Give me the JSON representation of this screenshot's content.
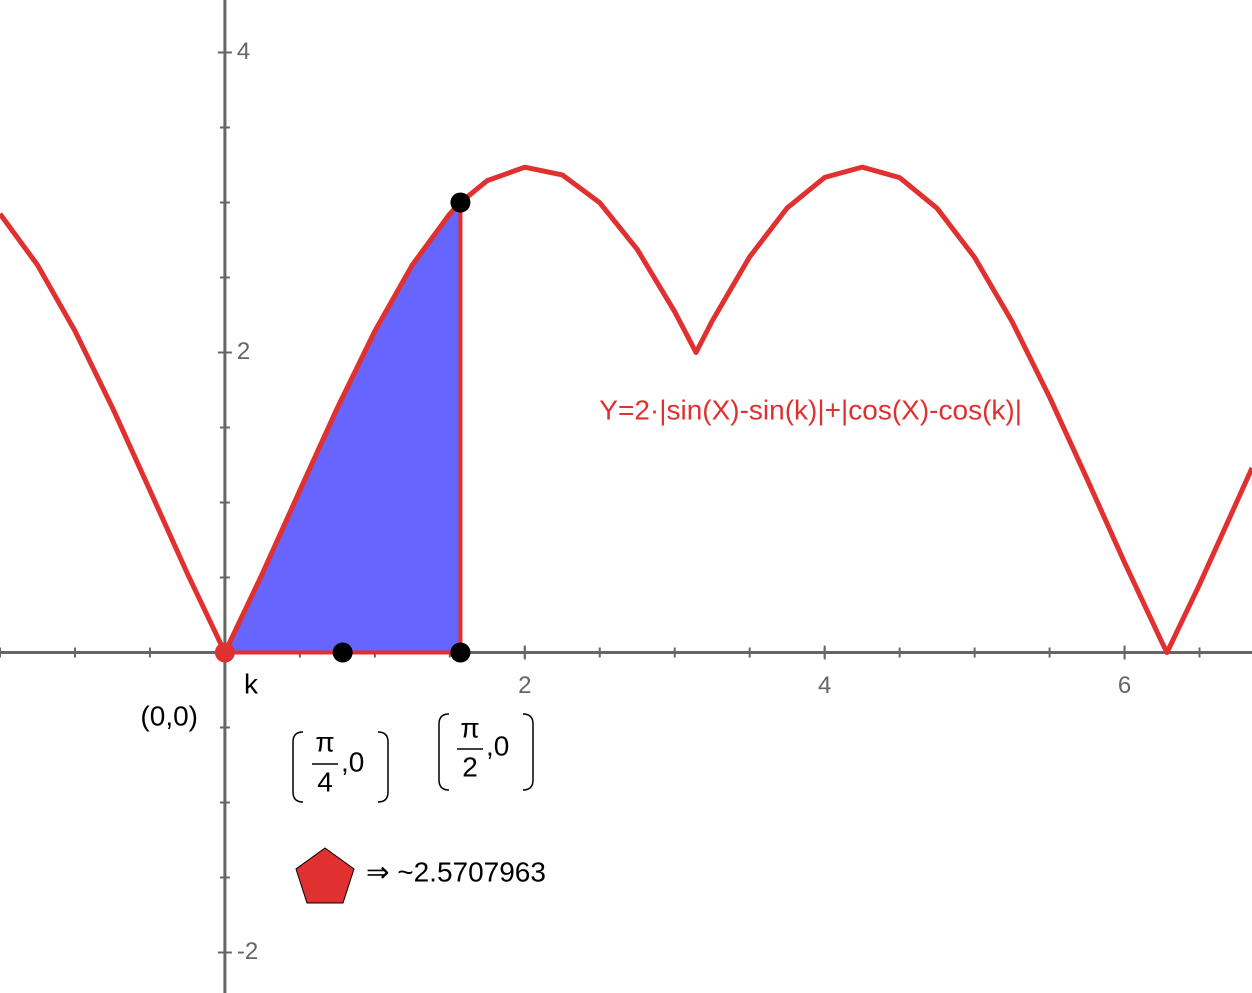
{
  "chart_data": {
    "type": "line",
    "x": [
      -1.5,
      -1.25,
      -1.0,
      -0.75,
      -0.5,
      -0.25,
      0,
      0.25,
      0.5,
      0.75,
      1.0,
      1.25,
      1.5,
      1.5708,
      1.75,
      2.0,
      2.25,
      2.5,
      2.75,
      3.0,
      3.1416,
      3.25,
      3.5,
      3.75,
      4.0,
      4.25,
      4.5,
      4.75,
      5.0,
      5.25,
      5.5,
      5.75,
      6.0,
      6.25,
      6.2832,
      6.5,
      6.75,
      6.85
    ],
    "series": [
      {
        "name": "Y=2·|sin(X)-sin(k)|+|cos(X)-cos(k)|",
        "color": "#e03030",
        "values": [
          2.924,
          2.583,
          2.143,
          1.631,
          1.081,
          0.526,
          0,
          0.526,
          1.081,
          1.631,
          2.143,
          2.583,
          2.924,
          3,
          3.146,
          3.235,
          3.184,
          2.998,
          2.688,
          2.272,
          2,
          2.21,
          2.638,
          2.964,
          3.167,
          3.236,
          3.166,
          2.961,
          2.634,
          2.206,
          1.702,
          1.156,
          0.599,
          0.067,
          0,
          0.453,
          1.007,
          1.23
        ]
      }
    ],
    "shaded": {
      "from": 0,
      "to": 1.5708,
      "color": "#6666ff"
    },
    "points": [
      {
        "x": 0,
        "y": 0,
        "color": "#e03030"
      },
      {
        "x": 0.7854,
        "y": 0,
        "color": "#000000"
      },
      {
        "x": 1.5708,
        "y": 0,
        "color": "#000000"
      },
      {
        "x": 1.5708,
        "y": 3,
        "color": "#000000"
      }
    ],
    "point_labels": [
      {
        "text": "k"
      },
      {
        "text": "(0,0)"
      },
      {
        "numerator": "π",
        "denominator": "4",
        "tail": ",0"
      },
      {
        "numerator": "π",
        "denominator": "2",
        "tail": ",0"
      }
    ],
    "area_label": "⇒ ~2.5707963",
    "xlim": [
      -1.5,
      6.85
    ],
    "ylim": [
      -2.27,
      4.35
    ],
    "xticks": [
      2,
      4,
      6
    ],
    "yticks": [
      -2,
      2,
      4
    ],
    "minor_tick_step": 0.5
  }
}
